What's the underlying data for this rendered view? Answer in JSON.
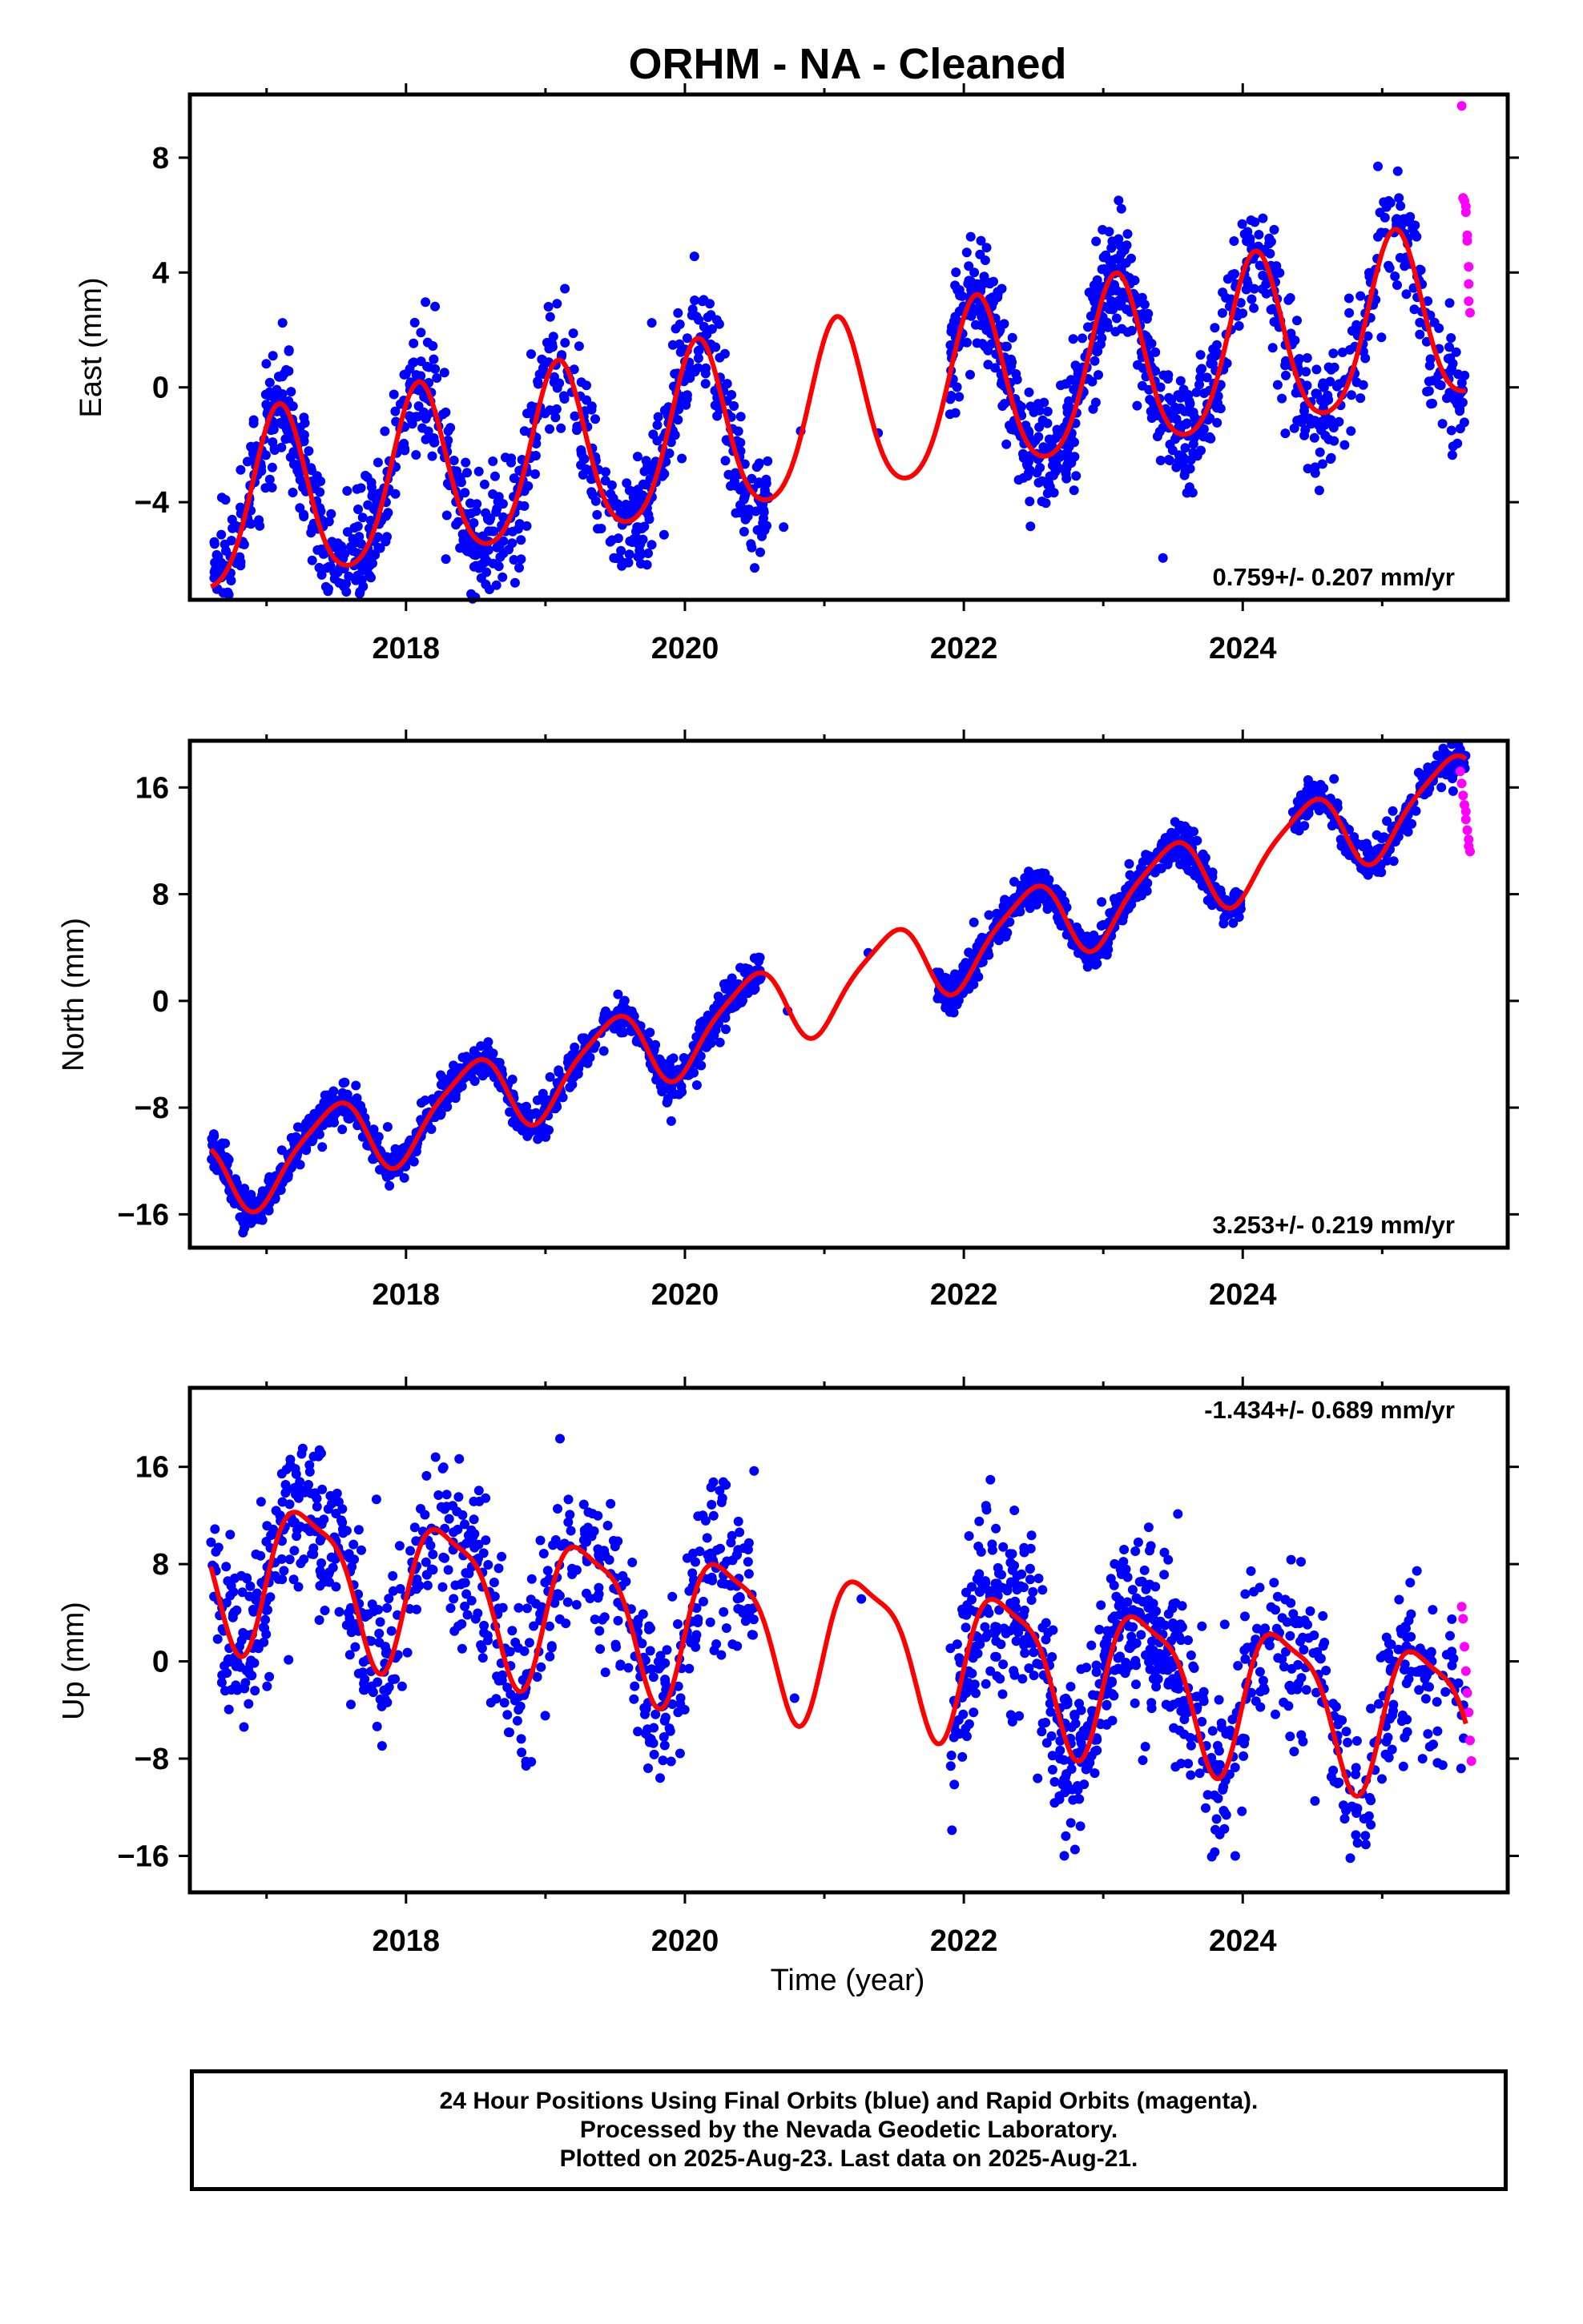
{
  "title": "ORHM  - NA - Cleaned",
  "colors": {
    "final_orbits": "#0000ff",
    "rapid_orbits": "#ff00ff",
    "model": "#ff0000",
    "axis": "#000000"
  },
  "footer": {
    "line1": "24 Hour Positions Using Final Orbits (blue) and Rapid Orbits (magenta).",
    "line2": "Processed by the Nevada Geodetic Laboratory.",
    "line3": "Plotted on 2025-Aug-23. Last data on 2025-Aug-21."
  },
  "chart_data": [
    {
      "type": "scatter",
      "component": "east",
      "ylabel": "East (mm)",
      "xlabel": "",
      "xlim": [
        2016.45,
        2025.9
      ],
      "ylim": [
        -7.4,
        10.2
      ],
      "x_ticks": [
        2018,
        2020,
        2022,
        2024
      ],
      "y_ticks": [
        -4,
        0,
        4,
        8
      ],
      "rate_label": "0.759+/- 0.207 mm/yr",
      "rate_position": "bottom-right",
      "model": {
        "offset": -1.0,
        "rate": 0.759,
        "t0": 2021.0,
        "amp_annual": 3.0,
        "phase_annual": 1.0,
        "amp_semi": 0.4,
        "phase_semi": 0.4,
        "start": 2016.6,
        "end": 2025.6
      },
      "scatter": {
        "seed": 11,
        "noise": 1.0,
        "spikes": 0.01,
        "spike_mag": 3.5
      },
      "final_orbit_spans": [
        [
          2016.6,
          2017.7,
          3.2
        ],
        [
          2017.7,
          2018.9,
          3.0
        ],
        [
          2018.9,
          2019.55,
          2.2
        ],
        [
          2019.55,
          2020.6,
          3.0
        ],
        [
          2020.6,
          2020.8,
          0.05
        ],
        [
          2020.8,
          2020.85,
          0.1
        ],
        [
          2021.3,
          2021.4,
          0.1
        ],
        [
          2021.9,
          2023.8,
          3.6
        ],
        [
          2023.8,
          2024.9,
          2.4
        ],
        [
          2024.9,
          2025.6,
          2.0
        ]
      ],
      "rapid_orbits": {
        "x": [
          2025.57,
          2025.58,
          2025.59,
          2025.6,
          2025.6,
          2025.61,
          2025.61,
          2025.62,
          2025.62,
          2025.62,
          2025.63
        ],
        "y": [
          9.8,
          6.6,
          6.5,
          6.3,
          6.1,
          5.3,
          5.1,
          4.2,
          3.6,
          3.0,
          2.6
        ]
      }
    },
    {
      "type": "scatter",
      "component": "north",
      "ylabel": "North (mm)",
      "xlabel": "",
      "xlim": [
        2016.45,
        2025.9
      ],
      "ylim": [
        -18.5,
        19.5
      ],
      "x_ticks": [
        2018,
        2020,
        2022,
        2024
      ],
      "y_ticks": [
        -16,
        -8,
        0,
        8,
        16
      ],
      "rate_label": "3.253+/- 0.219 mm/yr",
      "rate_position": "bottom-right",
      "model": {
        "offset": 0.8,
        "rate": 3.253,
        "t0": 2021.0,
        "amp_annual": 2.9,
        "phase_annual": -1.3,
        "amp_semi": 0.6,
        "phase_semi": 0.0,
        "start": 2016.6,
        "end": 2025.6
      },
      "scatter": {
        "seed": 22,
        "noise": 0.75,
        "spikes": 0.005,
        "spike_mag": 3.0
      },
      "final_orbit_spans": [
        [
          2016.6,
          2018.9,
          3.2
        ],
        [
          2018.9,
          2019.6,
          2.5
        ],
        [
          2019.6,
          2020.55,
          3.2
        ],
        [
          2020.7,
          2020.75,
          0.05
        ],
        [
          2021.3,
          2021.35,
          0.1
        ],
        [
          2021.8,
          2023.2,
          3.6
        ],
        [
          2023.2,
          2024.0,
          3.2
        ],
        [
          2024.35,
          2025.6,
          2.4
        ]
      ],
      "rapid_orbits": {
        "x": [
          2025.56,
          2025.57,
          2025.58,
          2025.59,
          2025.6,
          2025.6,
          2025.61,
          2025.62,
          2025.62,
          2025.63
        ],
        "y": [
          17.2,
          16.3,
          15.4,
          14.7,
          14.2,
          13.6,
          12.8,
          12.1,
          11.6,
          11.2
        ]
      }
    },
    {
      "type": "scatter",
      "component": "up",
      "ylabel": "Up (mm)",
      "xlabel": "Time (year)",
      "xlim": [
        2016.45,
        2025.9
      ],
      "ylim": [
        -19.0,
        22.5
      ],
      "x_ticks": [
        2018,
        2020,
        2022,
        2024
      ],
      "y_ticks": [
        -16,
        -8,
        0,
        8,
        16
      ],
      "rate_label": "-1.434+/- 0.689 mm/yr",
      "rate_position": "top-right",
      "model": {
        "offset": 1.8,
        "rate": -1.434,
        "t0": 2021.0,
        "amp_annual": 5.9,
        "phase_annual": -0.3,
        "amp_semi": 1.6,
        "phase_semi": 0.5,
        "start": 2016.6,
        "end": 2025.6
      },
      "scatter": {
        "seed": 33,
        "noise": 3.4,
        "spikes": 0.015,
        "spike_mag": 6.0
      },
      "final_orbit_spans": [
        [
          2016.6,
          2017.6,
          2.8
        ],
        [
          2017.6,
          2018.6,
          2.2
        ],
        [
          2018.6,
          2019.7,
          1.9
        ],
        [
          2019.7,
          2020.5,
          2.4
        ],
        [
          2020.75,
          2020.8,
          0.05
        ],
        [
          2021.2,
          2021.3,
          0.1
        ],
        [
          2021.9,
          2023.7,
          3.4
        ],
        [
          2023.7,
          2024.8,
          2.0
        ],
        [
          2024.8,
          2025.6,
          1.8
        ]
      ],
      "rapid_orbits": {
        "x": [
          2025.57,
          2025.58,
          2025.59,
          2025.6,
          2025.61,
          2025.62,
          2025.63,
          2025.64
        ],
        "y": [
          4.5,
          3.5,
          1.2,
          -0.8,
          -2.6,
          -4.2,
          -6.5,
          -8.2
        ]
      }
    }
  ]
}
